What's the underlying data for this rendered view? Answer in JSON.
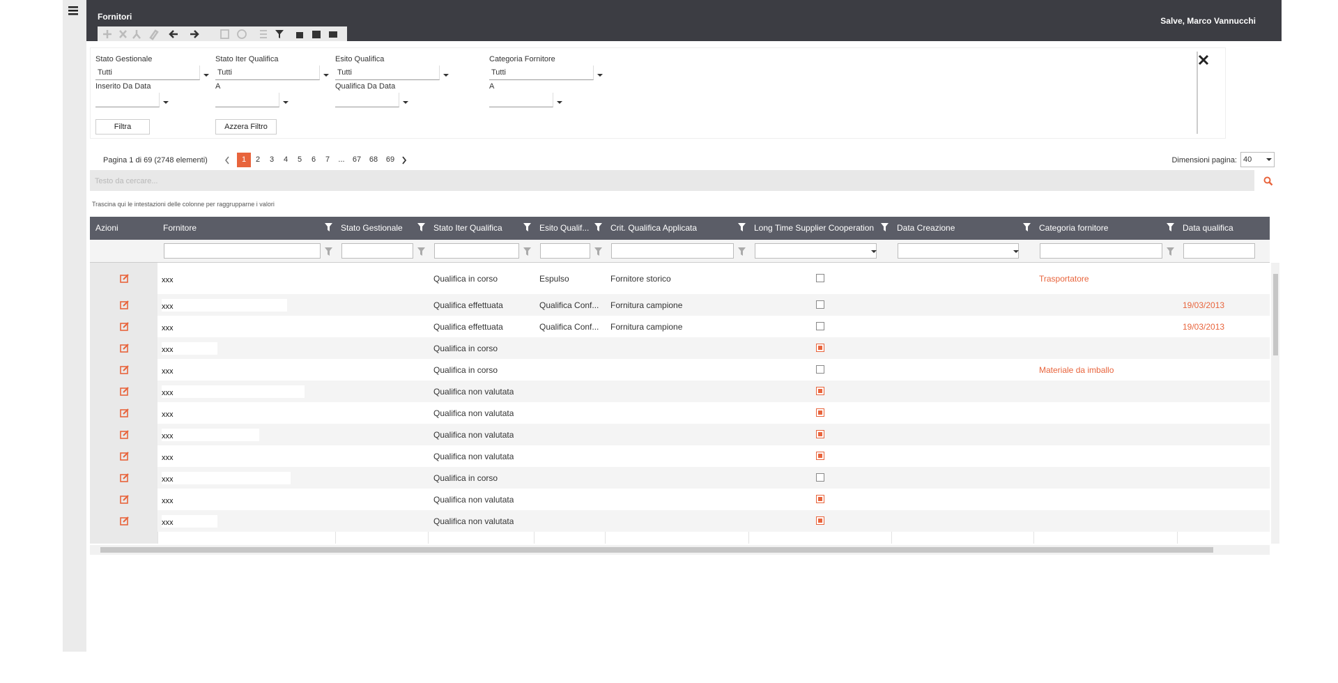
{
  "header": {
    "title": "Fornitori",
    "greeting": "Salve, Marco Vannucchi"
  },
  "filters": [
    {
      "label": "Stato Gestionale",
      "value": "Tutti"
    },
    {
      "label": "Stato Iter Qualifica",
      "value": "Tutti"
    },
    {
      "label": "Esito Qualifica",
      "value": "Tutti"
    },
    {
      "label": "Categoria Fornitore",
      "value": "Tutti"
    },
    {
      "label": "Inserito Da Data"
    },
    {
      "label": "A"
    },
    {
      "label": "Qualifica Da Data"
    },
    {
      "label": "A"
    }
  ],
  "buttons": [
    "Filtra",
    "Azzera Filtro"
  ],
  "pagination": {
    "summary": "Pagina 1 di 69 (2748 elementi)",
    "pages": [
      "1",
      "2",
      "3",
      "4",
      "5",
      "6",
      "7",
      "...",
      "67",
      "68",
      "69"
    ],
    "current": 0,
    "page_size_label": "Dimensioni pagina:",
    "page_size": "40"
  },
  "search_placeholder": "Testo da cercare...",
  "group_hint": "Trascina qui le intestazioni delle colonne per raggrupparne i valori",
  "table": {
    "columns": [
      "Azioni",
      "Fornitore",
      "Stato Gestionale",
      "Stato Iter Qualifica",
      "Esito Qualif...",
      "Crit. Qualifica Applicata",
      "Long Time Supplier Cooperation",
      "Data Creazione",
      "Categoria fornitore",
      "Data qualifica"
    ],
    "rows": [
      [
        "xxx",
        null,
        "Qualifica in corso",
        "Espulso",
        "Fornitore storico",
        false,
        null,
        "Trasportatore",
        null
      ],
      [
        "xxx",
        null,
        "Qualifica effettuata",
        "Qualifica Conf...",
        "Fornitura campione",
        false,
        null,
        null,
        "19/03/2013"
      ],
      [
        "xxx",
        null,
        "Qualifica effettuata",
        "Qualifica Conf...",
        "Fornitura campione",
        false,
        null,
        null,
        "19/03/2013"
      ],
      [
        "xxx",
        null,
        "Qualifica in corso",
        null,
        null,
        true,
        null,
        null,
        null
      ],
      [
        "xxx",
        null,
        "Qualifica in corso",
        null,
        null,
        false,
        null,
        "Materiale da imballo",
        null
      ],
      [
        "xxx",
        null,
        "Qualifica non valutata",
        null,
        null,
        true,
        null,
        null,
        null
      ],
      [
        "xxx",
        null,
        "Qualifica non valutata",
        null,
        null,
        true,
        null,
        null,
        null
      ],
      [
        "xxx",
        null,
        "Qualifica non valutata",
        null,
        null,
        true,
        null,
        null,
        null
      ],
      [
        "xxx",
        null,
        "Qualifica non valutata",
        null,
        null,
        true,
        null,
        null,
        null
      ],
      [
        "xxx",
        null,
        "Qualifica in corso",
        null,
        null,
        false,
        null,
        null,
        null
      ],
      [
        "xxx",
        null,
        "Qualifica non valutata",
        null,
        null,
        true,
        null,
        null,
        null
      ],
      [
        "xxx",
        null,
        "Qualifica non valutata",
        null,
        null,
        true,
        null,
        null,
        null
      ]
    ]
  }
}
